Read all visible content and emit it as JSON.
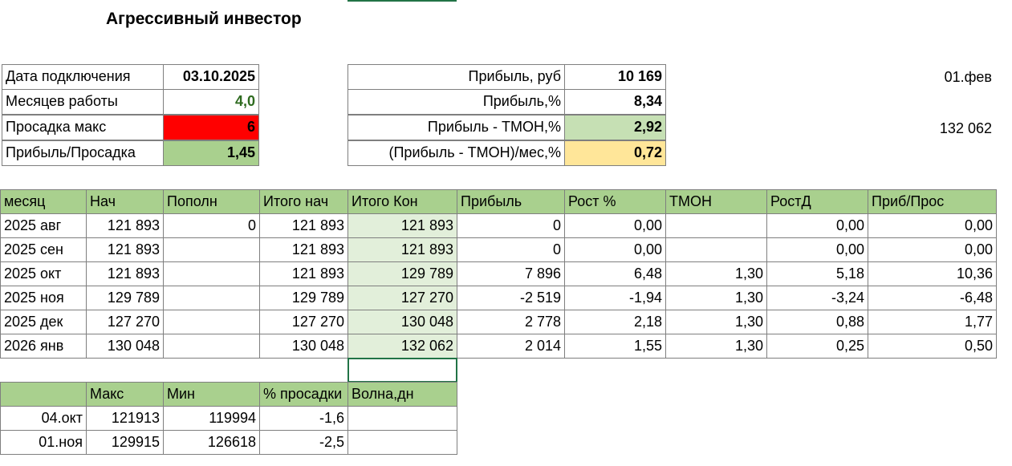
{
  "title": "Агрессивный инвестор",
  "summary_left": {
    "rows": [
      [
        "Дата подключения",
        "03.10.2025"
      ],
      [
        "Месяцев работы",
        "4,0"
      ],
      [
        "Просадка макс",
        "6"
      ],
      [
        "Прибыль/Просадка",
        "1,45"
      ]
    ]
  },
  "summary_right": {
    "rows": [
      [
        "Прибыль, руб",
        "10 169"
      ],
      [
        "Прибыль,%",
        "8,34"
      ],
      [
        "Прибыль - ТМОН,%",
        "2,92"
      ],
      [
        "(Прибыль - ТМОН)/мес,%",
        "0,72"
      ]
    ]
  },
  "side_notes": [
    "01.фев",
    "132 062"
  ],
  "monthly_table": {
    "headers": [
      "месяц",
      "Нач",
      "Пополн",
      "Итого нач",
      "Итого Кон",
      "Прибыль",
      "Рост %",
      "ТМОН",
      "РостД",
      "Приб/Прос"
    ],
    "rows": [
      [
        "2025 авг",
        "121 893",
        "0",
        "121 893",
        "121 893",
        "0",
        "0,00",
        null,
        "0,00",
        "0,00"
      ],
      [
        "2025 сен",
        "121 893",
        null,
        "121 893",
        "121 893",
        "0",
        "0,00",
        null,
        "0,00",
        "0,00"
      ],
      [
        "2025 окт",
        "121 893",
        null,
        "121 893",
        "129 789",
        "7 896",
        "6,48",
        "1,30",
        "5,18",
        "10,36"
      ],
      [
        "2025 ноя",
        "129 789",
        null,
        "129 789",
        "127 270",
        "-2 519",
        "-1,94",
        "1,30",
        "-3,24",
        "-6,48"
      ],
      [
        "2025 дек",
        "127 270",
        null,
        "127 270",
        "130 048",
        "2 778",
        "2,18",
        "1,30",
        "0,88",
        "1,77"
      ],
      [
        "2026 янв",
        "130 048",
        null,
        "130 048",
        "132 062",
        "2 014",
        "1,55",
        "1,30",
        "0,25",
        "0,50"
      ]
    ]
  },
  "drawdown_table": {
    "headers": [
      "Макс",
      "Мин",
      "% просадки",
      "Волна,дн"
    ],
    "rows": [
      [
        "04.окт",
        "121913",
        "119994",
        "-1,6"
      ],
      [
        "01.ноя",
        "129915",
        "126618",
        "-2,5"
      ]
    ]
  }
}
